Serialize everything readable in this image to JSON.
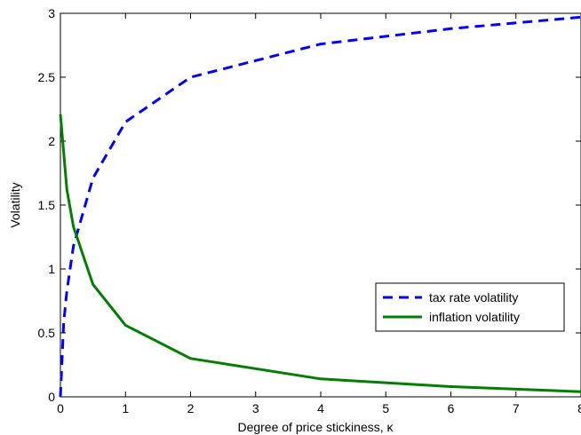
{
  "chart_data": {
    "type": "line",
    "title": "",
    "xlabel": "Degree of price stickiness, κ",
    "ylabel": "Volatility",
    "xlim": [
      0,
      8
    ],
    "ylim": [
      0,
      3
    ],
    "grid": false,
    "legend_position": "center-right",
    "x_ticks": [
      "0",
      "1",
      "2",
      "3",
      "4",
      "5",
      "6",
      "7",
      "8"
    ],
    "y_ticks": [
      "0",
      "0.5",
      "1",
      "1.5",
      "2",
      "2.5",
      "3"
    ],
    "series": [
      {
        "name": "tax rate volatility",
        "color": "#0000ff",
        "style": "dashed",
        "x": [
          0,
          0.05,
          0.1,
          0.2,
          0.5,
          1,
          2,
          4,
          6,
          8
        ],
        "y": [
          0.0,
          0.58,
          0.83,
          1.18,
          1.71,
          2.15,
          2.5,
          2.76,
          2.88,
          2.97
        ]
      },
      {
        "name": "inflation volatility",
        "color": "#007f00",
        "style": "solid",
        "x": [
          0,
          0.1,
          0.2,
          0.5,
          1,
          2,
          4,
          6,
          8
        ],
        "y": [
          2.21,
          1.62,
          1.33,
          0.88,
          0.56,
          0.3,
          0.14,
          0.08,
          0.04
        ]
      }
    ]
  }
}
